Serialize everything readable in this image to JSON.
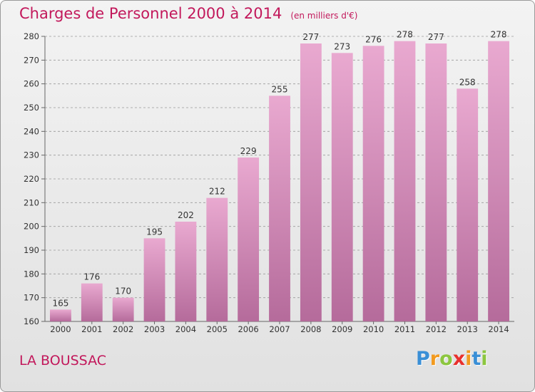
{
  "title": "Charges de Personnel 2000 à 2014",
  "subtitle": "(en milliers d'€)",
  "location": "LA BOUSSAC",
  "logo": {
    "text": "Proxiti",
    "letters": [
      {
        "ch": "P",
        "color": "#3a8fd6"
      },
      {
        "ch": "r",
        "color": "#f29a1f"
      },
      {
        "ch": "o",
        "color": "#8cc63f"
      },
      {
        "ch": "x",
        "color": "#e8302d"
      },
      {
        "ch": "i",
        "color": "#f29a1f"
      },
      {
        "ch": "t",
        "color": "#3a8fd6"
      },
      {
        "ch": "i",
        "color": "#8cc63f"
      }
    ]
  },
  "colors": {
    "bar_top": "#e9a9d0",
    "bar_bottom": "#b56b9b",
    "text_accent": "#c2185b",
    "grid": "#9a9a9a"
  },
  "chart_data": {
    "type": "bar",
    "title": "Charges de Personnel 2000 à 2014",
    "subtitle": "(en milliers d'€)",
    "xlabel": "",
    "ylabel": "",
    "categories": [
      "2000",
      "2001",
      "2002",
      "2003",
      "2004",
      "2005",
      "2006",
      "2007",
      "2008",
      "2009",
      "2010",
      "2011",
      "2012",
      "2013",
      "2014"
    ],
    "values": [
      165,
      176,
      170,
      195,
      202,
      212,
      229,
      255,
      277,
      273,
      276,
      278,
      277,
      258,
      278
    ],
    "ylim": [
      160,
      280
    ],
    "yticks": [
      160,
      170,
      180,
      190,
      200,
      210,
      220,
      230,
      240,
      250,
      260,
      270,
      280
    ],
    "grid": true,
    "data_labels": true
  }
}
